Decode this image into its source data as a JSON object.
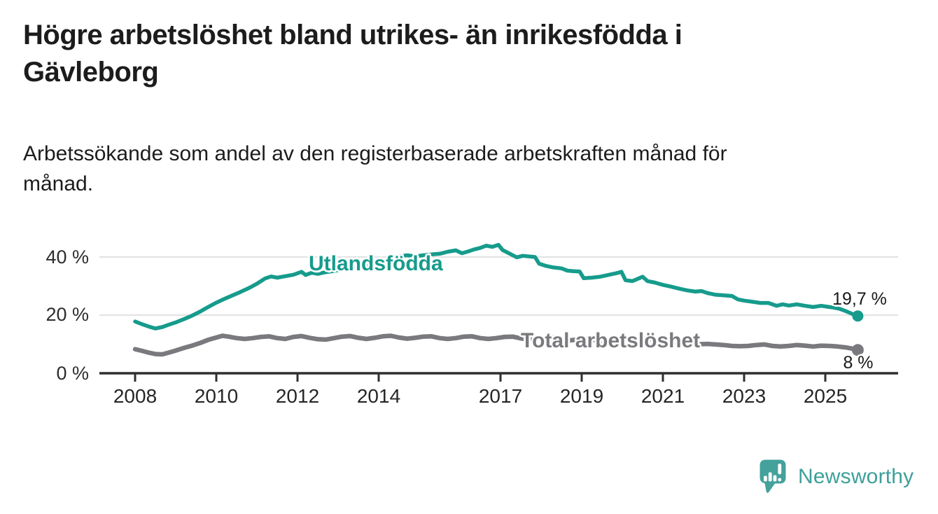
{
  "title_lines": [
    "Högre arbetslöshet bland utrikes- än inrikesfödda i",
    "Gävleborg"
  ],
  "subtitle_lines": [
    "Arbetssökande som andel av den registerbaserade arbetskraften månad för",
    "månad."
  ],
  "branding": {
    "logo_text": "Newsworthy",
    "logo_icon": "speech-bubble-bar-chart-icon",
    "logo_color": "#44a19b",
    "text_color": "#3da09a"
  },
  "chart_data": {
    "type": "line",
    "title": "Högre arbetslöshet bland utrikes- än inrikesfödda i Gävleborg",
    "subtitle": "Arbetssökande som andel av den registerbaserade arbetskraften månad för månad.",
    "unit": "%",
    "grid": "horizontal",
    "legend_position": "inline-labels",
    "x_axis": {
      "ticks": [
        2008,
        2010,
        2012,
        2014,
        2017,
        2019,
        2021,
        2023,
        2025
      ],
      "range": [
        2007.1,
        2026.8
      ]
    },
    "y_axis": {
      "ticks": [
        0,
        20,
        40
      ],
      "tick_labels": [
        "0 %",
        "20 %",
        "40 %"
      ],
      "gridline_values": [
        20,
        40
      ],
      "range": [
        0,
        48
      ]
    },
    "colors": {
      "foreign_born": "#169b8c",
      "total": "#7a7a7e",
      "gridline": "#d9d9d9",
      "axis": "#2f2f2f"
    },
    "series": [
      {
        "name": "Utlandsfödda",
        "color": "#169b8c",
        "end_label": "19,7 %",
        "end_value": 19.7,
        "points": [
          [
            2008.0,
            17.8
          ],
          [
            2008.17,
            16.9
          ],
          [
            2008.33,
            16.1
          ],
          [
            2008.5,
            15.4
          ],
          [
            2008.67,
            15.9
          ],
          [
            2008.83,
            16.7
          ],
          [
            2009.0,
            17.5
          ],
          [
            2009.2,
            18.6
          ],
          [
            2009.4,
            19.8
          ],
          [
            2009.6,
            21.2
          ],
          [
            2009.8,
            22.8
          ],
          [
            2010.0,
            24.3
          ],
          [
            2010.2,
            25.6
          ],
          [
            2010.4,
            26.8
          ],
          [
            2010.6,
            28.0
          ],
          [
            2010.8,
            29.3
          ],
          [
            2011.0,
            30.8
          ],
          [
            2011.2,
            32.6
          ],
          [
            2011.35,
            33.3
          ],
          [
            2011.5,
            32.9
          ],
          [
            2011.7,
            33.4
          ],
          [
            2011.9,
            33.9
          ],
          [
            2012.1,
            34.9
          ],
          [
            2012.2,
            33.8
          ],
          [
            2012.35,
            34.6
          ],
          [
            2012.5,
            34.2
          ],
          [
            2012.7,
            34.8
          ],
          [
            2012.9,
            35.2
          ],
          [
            2013.1,
            35.8
          ],
          [
            2013.3,
            36.1
          ],
          [
            2013.5,
            36.7
          ],
          [
            2013.7,
            37.2
          ],
          [
            2013.9,
            37.9
          ],
          [
            2014.1,
            38.6
          ],
          [
            2014.3,
            39.4
          ],
          [
            2014.5,
            40.2
          ],
          [
            2014.7,
            40.6
          ],
          [
            2014.9,
            40.2
          ],
          [
            2015.1,
            40.6
          ],
          [
            2015.3,
            40.9
          ],
          [
            2015.5,
            41.1
          ],
          [
            2015.7,
            41.8
          ],
          [
            2015.9,
            42.3
          ],
          [
            2016.05,
            41.3
          ],
          [
            2016.2,
            41.9
          ],
          [
            2016.35,
            42.6
          ],
          [
            2016.5,
            43.1
          ],
          [
            2016.65,
            43.9
          ],
          [
            2016.8,
            43.5
          ],
          [
            2016.95,
            44.2
          ],
          [
            2017.05,
            42.4
          ],
          [
            2017.25,
            41.0
          ],
          [
            2017.4,
            39.9
          ],
          [
            2017.55,
            40.4
          ],
          [
            2017.7,
            40.2
          ],
          [
            2017.85,
            40.0
          ],
          [
            2017.95,
            37.7
          ],
          [
            2018.1,
            37.0
          ],
          [
            2018.3,
            36.4
          ],
          [
            2018.5,
            36.1
          ],
          [
            2018.65,
            35.3
          ],
          [
            2018.8,
            35.1
          ],
          [
            2018.95,
            35.0
          ],
          [
            2019.05,
            32.7
          ],
          [
            2019.25,
            32.9
          ],
          [
            2019.45,
            33.2
          ],
          [
            2019.65,
            33.8
          ],
          [
            2019.85,
            34.4
          ],
          [
            2019.98,
            34.9
          ],
          [
            2020.08,
            32.0
          ],
          [
            2020.25,
            31.7
          ],
          [
            2020.4,
            32.6
          ],
          [
            2020.5,
            33.2
          ],
          [
            2020.62,
            31.7
          ],
          [
            2020.8,
            31.2
          ],
          [
            2021.0,
            30.4
          ],
          [
            2021.2,
            29.8
          ],
          [
            2021.4,
            29.1
          ],
          [
            2021.6,
            28.5
          ],
          [
            2021.8,
            28.1
          ],
          [
            2021.95,
            28.3
          ],
          [
            2022.1,
            27.6
          ],
          [
            2022.3,
            27.0
          ],
          [
            2022.5,
            26.8
          ],
          [
            2022.7,
            26.6
          ],
          [
            2022.85,
            25.4
          ],
          [
            2023.0,
            25.0
          ],
          [
            2023.2,
            24.6
          ],
          [
            2023.4,
            24.2
          ],
          [
            2023.6,
            24.2
          ],
          [
            2023.8,
            23.2
          ],
          [
            2023.95,
            23.7
          ],
          [
            2024.1,
            23.3
          ],
          [
            2024.3,
            23.7
          ],
          [
            2024.5,
            23.2
          ],
          [
            2024.7,
            22.8
          ],
          [
            2024.9,
            23.2
          ],
          [
            2025.05,
            22.9
          ],
          [
            2025.2,
            22.6
          ],
          [
            2025.35,
            22.2
          ],
          [
            2025.5,
            21.4
          ],
          [
            2025.65,
            20.5
          ],
          [
            2025.8,
            19.7
          ]
        ]
      },
      {
        "name": "Total arbetslöshet",
        "color": "#7a7a7e",
        "end_label": "8 %",
        "end_value": 8.0,
        "points": [
          [
            2008.0,
            8.3
          ],
          [
            2008.17,
            7.7
          ],
          [
            2008.33,
            7.1
          ],
          [
            2008.5,
            6.6
          ],
          [
            2008.67,
            6.5
          ],
          [
            2008.83,
            7.1
          ],
          [
            2009.0,
            7.8
          ],
          [
            2009.2,
            8.7
          ],
          [
            2009.4,
            9.5
          ],
          [
            2009.6,
            10.4
          ],
          [
            2009.8,
            11.5
          ],
          [
            2010.0,
            12.3
          ],
          [
            2010.15,
            12.9
          ],
          [
            2010.3,
            12.6
          ],
          [
            2010.5,
            12.1
          ],
          [
            2010.7,
            11.8
          ],
          [
            2010.9,
            12.1
          ],
          [
            2011.1,
            12.5
          ],
          [
            2011.3,
            12.7
          ],
          [
            2011.5,
            12.1
          ],
          [
            2011.7,
            11.8
          ],
          [
            2011.9,
            12.5
          ],
          [
            2012.1,
            12.8
          ],
          [
            2012.3,
            12.2
          ],
          [
            2012.5,
            11.7
          ],
          [
            2012.7,
            11.6
          ],
          [
            2012.9,
            12.1
          ],
          [
            2013.1,
            12.6
          ],
          [
            2013.3,
            12.8
          ],
          [
            2013.5,
            12.2
          ],
          [
            2013.7,
            11.8
          ],
          [
            2013.9,
            12.2
          ],
          [
            2014.1,
            12.7
          ],
          [
            2014.3,
            12.9
          ],
          [
            2014.5,
            12.3
          ],
          [
            2014.7,
            11.9
          ],
          [
            2014.9,
            12.2
          ],
          [
            2015.1,
            12.6
          ],
          [
            2015.3,
            12.7
          ],
          [
            2015.5,
            12.1
          ],
          [
            2015.7,
            11.8
          ],
          [
            2015.9,
            12.1
          ],
          [
            2016.1,
            12.6
          ],
          [
            2016.3,
            12.7
          ],
          [
            2016.5,
            12.1
          ],
          [
            2016.7,
            11.8
          ],
          [
            2016.9,
            12.1
          ],
          [
            2017.1,
            12.5
          ],
          [
            2017.3,
            12.6
          ],
          [
            2017.5,
            12.0
          ],
          [
            2017.7,
            11.6
          ],
          [
            2017.9,
            11.9
          ],
          [
            2018.1,
            12.2
          ],
          [
            2018.3,
            12.3
          ],
          [
            2018.5,
            11.7
          ],
          [
            2018.7,
            11.3
          ],
          [
            2018.9,
            11.6
          ],
          [
            2019.1,
            11.8
          ],
          [
            2019.3,
            11.4
          ],
          [
            2019.5,
            11.0
          ],
          [
            2019.7,
            10.8
          ],
          [
            2019.9,
            11.1
          ],
          [
            2020.1,
            11.4
          ],
          [
            2020.3,
            11.9
          ],
          [
            2020.5,
            12.1
          ],
          [
            2020.7,
            11.7
          ],
          [
            2020.9,
            11.3
          ],
          [
            2021.1,
            11.0
          ],
          [
            2021.3,
            10.7
          ],
          [
            2021.5,
            10.3
          ],
          [
            2021.7,
            10.0
          ],
          [
            2021.9,
            10.0
          ],
          [
            2022.1,
            10.1
          ],
          [
            2022.3,
            9.9
          ],
          [
            2022.5,
            9.7
          ],
          [
            2022.7,
            9.4
          ],
          [
            2022.9,
            9.3
          ],
          [
            2023.1,
            9.4
          ],
          [
            2023.3,
            9.7
          ],
          [
            2023.5,
            9.9
          ],
          [
            2023.7,
            9.4
          ],
          [
            2023.9,
            9.2
          ],
          [
            2024.1,
            9.4
          ],
          [
            2024.3,
            9.7
          ],
          [
            2024.5,
            9.5
          ],
          [
            2024.7,
            9.2
          ],
          [
            2024.9,
            9.5
          ],
          [
            2025.1,
            9.4
          ],
          [
            2025.3,
            9.2
          ],
          [
            2025.5,
            8.9
          ],
          [
            2025.65,
            8.5
          ],
          [
            2025.8,
            8.0
          ]
        ]
      }
    ]
  }
}
